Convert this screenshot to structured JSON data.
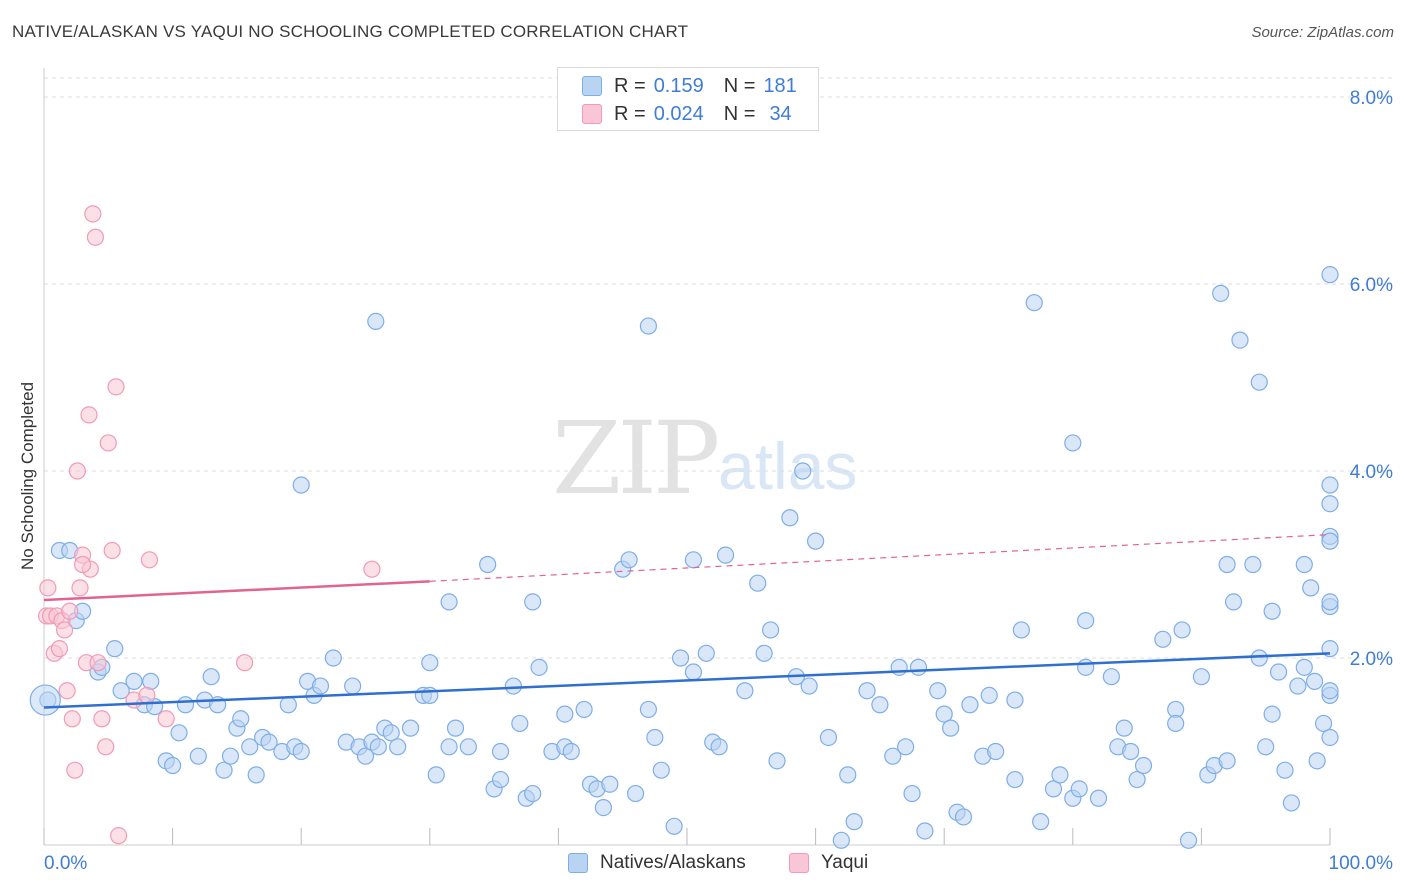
{
  "title": "NATIVE/ALASKAN VS YAQUI NO SCHOOLING COMPLETED CORRELATION CHART",
  "source": "Source: ZipAtlas.com",
  "watermark": {
    "part1": "ZIP",
    "part2": "atlas"
  },
  "legend": {
    "rows": [
      {
        "r_label": "R =",
        "r_value": "0.159",
        "n_label": "N =",
        "n_value": "181"
      },
      {
        "r_label": "R =",
        "r_value": "0.024",
        "n_label": "N =",
        "n_value": "34"
      }
    ]
  },
  "colors": {
    "blue": "#7eaee8",
    "blue_fill": "#b9d3f3",
    "blue_line": "#2f6fd0",
    "pink": "#f29ab6",
    "pink_fill": "#f8c6d6",
    "pink_line": "#e0648f",
    "grid": "#dddddd",
    "axis_label": "#3f7dd4"
  },
  "chart_data": {
    "type": "scatter",
    "title": "NATIVE/ALASKAN VS YAQUI NO SCHOOLING COMPLETED CORRELATION CHART",
    "xlabel": "",
    "ylabel": "No Schooling Completed",
    "xlim": [
      0,
      100
    ],
    "ylim": [
      0,
      8.2
    ],
    "x_tick_labels": [
      "0.0%",
      "100.0%"
    ],
    "y_ticks": [
      2,
      4,
      6,
      8
    ],
    "y_tick_labels": [
      "2.0%",
      "4.0%",
      "6.0%",
      "8.0%"
    ],
    "grid": true,
    "series": [
      {
        "name": "Natives/Alaskans",
        "r": 0.159,
        "n": 181,
        "trend": {
          "x": [
            0,
            100
          ],
          "y": [
            1.47,
            2.05
          ]
        },
        "points": [
          [
            0.3,
            1.55
          ],
          [
            1.2,
            3.15
          ],
          [
            2.0,
            3.15
          ],
          [
            2.5,
            2.4
          ],
          [
            3.0,
            2.5
          ],
          [
            4.2,
            1.85
          ],
          [
            4.5,
            1.9
          ],
          [
            5.5,
            2.1
          ],
          [
            6.0,
            1.65
          ],
          [
            7.0,
            1.75
          ],
          [
            7.8,
            1.5
          ],
          [
            8.3,
            1.75
          ],
          [
            8.6,
            1.48
          ],
          [
            9.5,
            0.9
          ],
          [
            10.0,
            0.85
          ],
          [
            10.5,
            1.2
          ],
          [
            11.0,
            1.5
          ],
          [
            12.0,
            0.95
          ],
          [
            12.5,
            1.55
          ],
          [
            13.0,
            1.8
          ],
          [
            13.5,
            1.5
          ],
          [
            14.0,
            0.8
          ],
          [
            14.5,
            0.95
          ],
          [
            15.0,
            1.25
          ],
          [
            15.3,
            1.35
          ],
          [
            16.0,
            1.05
          ],
          [
            16.5,
            0.75
          ],
          [
            17.0,
            1.15
          ],
          [
            17.5,
            1.1
          ],
          [
            18.5,
            1.0
          ],
          [
            19.0,
            1.5
          ],
          [
            19.5,
            1.05
          ],
          [
            20.0,
            1.0
          ],
          [
            20.5,
            1.75
          ],
          [
            21.0,
            1.6
          ],
          [
            20.0,
            3.85
          ],
          [
            21.5,
            1.7
          ],
          [
            22.5,
            2.0
          ],
          [
            23.5,
            1.1
          ],
          [
            24.0,
            1.7
          ],
          [
            24.5,
            1.05
          ],
          [
            25.0,
            0.95
          ],
          [
            25.5,
            1.1
          ],
          [
            26.0,
            1.05
          ],
          [
            25.8,
            5.6
          ],
          [
            26.5,
            1.25
          ],
          [
            27.0,
            1.2
          ],
          [
            27.5,
            1.05
          ],
          [
            28.5,
            1.25
          ],
          [
            29.5,
            1.6
          ],
          [
            30.0,
            1.95
          ],
          [
            30.5,
            0.75
          ],
          [
            30.0,
            1.6
          ],
          [
            31.5,
            1.05
          ],
          [
            32.0,
            1.25
          ],
          [
            31.5,
            2.6
          ],
          [
            33.0,
            1.05
          ],
          [
            34.5,
            3.0
          ],
          [
            35.0,
            0.6
          ],
          [
            35.5,
            0.7
          ],
          [
            35.5,
            1.0
          ],
          [
            36.5,
            1.7
          ],
          [
            37.0,
            1.3
          ],
          [
            37.5,
            0.5
          ],
          [
            38.0,
            0.55
          ],
          [
            38.0,
            2.6
          ],
          [
            38.5,
            1.9
          ],
          [
            39.5,
            1.0
          ],
          [
            40.5,
            1.05
          ],
          [
            40.5,
            1.4
          ],
          [
            41.0,
            1.0
          ],
          [
            42.0,
            1.45
          ],
          [
            42.5,
            0.65
          ],
          [
            43.0,
            0.6
          ],
          [
            43.5,
            0.4
          ],
          [
            44.0,
            0.65
          ],
          [
            45.0,
            2.95
          ],
          [
            45.5,
            3.05
          ],
          [
            46.0,
            0.55
          ],
          [
            47.0,
            1.45
          ],
          [
            47.0,
            5.55
          ],
          [
            47.5,
            1.15
          ],
          [
            48.0,
            0.8
          ],
          [
            49.0,
            0.2
          ],
          [
            49.5,
            2.0
          ],
          [
            50.5,
            3.05
          ],
          [
            50.5,
            1.85
          ],
          [
            51.5,
            2.05
          ],
          [
            52.0,
            1.1
          ],
          [
            52.5,
            1.05
          ],
          [
            53.0,
            3.1
          ],
          [
            54.5,
            1.65
          ],
          [
            55.5,
            2.8
          ],
          [
            56.0,
            2.05
          ],
          [
            56.5,
            2.3
          ],
          [
            57.0,
            0.9
          ],
          [
            58.0,
            3.5
          ],
          [
            58.5,
            1.8
          ],
          [
            59.0,
            4.0
          ],
          [
            59.5,
            1.7
          ],
          [
            60.0,
            3.25
          ],
          [
            61.0,
            1.15
          ],
          [
            62.0,
            0.05
          ],
          [
            62.5,
            0.75
          ],
          [
            63.0,
            0.25
          ],
          [
            64.0,
            1.65
          ],
          [
            65.0,
            1.5
          ],
          [
            66.0,
            0.95
          ],
          [
            66.5,
            1.9
          ],
          [
            67.0,
            1.05
          ],
          [
            67.5,
            0.55
          ],
          [
            68.0,
            1.9
          ],
          [
            68.5,
            0.15
          ],
          [
            69.5,
            1.65
          ],
          [
            70.0,
            1.4
          ],
          [
            70.5,
            1.25
          ],
          [
            71.0,
            0.35
          ],
          [
            71.5,
            0.3
          ],
          [
            72.0,
            1.5
          ],
          [
            73.0,
            0.95
          ],
          [
            73.5,
            1.6
          ],
          [
            74.0,
            1.0
          ],
          [
            75.5,
            0.7
          ],
          [
            76.0,
            2.3
          ],
          [
            75.5,
            1.55
          ],
          [
            77.0,
            5.8
          ],
          [
            77.5,
            0.25
          ],
          [
            78.5,
            0.6
          ],
          [
            79.0,
            0.75
          ],
          [
            80.0,
            0.5
          ],
          [
            80.5,
            0.6
          ],
          [
            81.0,
            2.4
          ],
          [
            81.0,
            1.9
          ],
          [
            80.0,
            4.3
          ],
          [
            82.0,
            0.5
          ],
          [
            83.0,
            1.8
          ],
          [
            83.5,
            1.05
          ],
          [
            84.0,
            1.25
          ],
          [
            84.5,
            1.0
          ],
          [
            85.0,
            0.7
          ],
          [
            85.5,
            0.85
          ],
          [
            87.0,
            2.2
          ],
          [
            88.0,
            1.45
          ],
          [
            88.5,
            2.3
          ],
          [
            89.0,
            0.05
          ],
          [
            90.0,
            1.8
          ],
          [
            90.5,
            0.75
          ],
          [
            91.0,
            0.85
          ],
          [
            91.5,
            5.9
          ],
          [
            92.0,
            3.0
          ],
          [
            92.5,
            2.6
          ],
          [
            93.0,
            5.4
          ],
          [
            94.0,
            3.0
          ],
          [
            94.5,
            2.0
          ],
          [
            94.5,
            4.95
          ],
          [
            95.0,
            1.05
          ],
          [
            95.5,
            2.5
          ],
          [
            95.5,
            1.4
          ],
          [
            96.0,
            1.85
          ],
          [
            96.5,
            0.8
          ],
          [
            97.0,
            0.45
          ],
          [
            97.5,
            1.7
          ],
          [
            98.0,
            1.9
          ],
          [
            98.5,
            2.75
          ],
          [
            98.8,
            1.75
          ],
          [
            99.0,
            0.9
          ],
          [
            99.5,
            1.3
          ],
          [
            100.5,
            1.6
          ],
          [
            101.0,
            3.3
          ],
          [
            102.0,
            2.55
          ],
          [
            102.5,
            3.25
          ],
          [
            103.0,
            2.6
          ],
          [
            103.5,
            2.1
          ],
          [
            104.0,
            3.85
          ],
          [
            104.5,
            3.65
          ],
          [
            105.0,
            6.1
          ],
          [
            102.0,
            1.15
          ],
          [
            100.0,
            1.65
          ],
          [
            98.0,
            3.0
          ],
          [
            92.0,
            0.9
          ],
          [
            88.0,
            1.3
          ]
        ]
      },
      {
        "name": "Yaqui",
        "r": 0.024,
        "n": 34,
        "trend": {
          "x": [
            0,
            30
          ],
          "y": [
            2.62,
            2.82
          ]
        },
        "trend_ext": {
          "x": [
            30,
            100
          ],
          "y": [
            2.82,
            3.32
          ]
        },
        "points": [
          [
            0.2,
            2.45
          ],
          [
            0.3,
            2.75
          ],
          [
            0.5,
            2.45
          ],
          [
            0.8,
            2.05
          ],
          [
            1.0,
            2.45
          ],
          [
            1.2,
            2.1
          ],
          [
            1.4,
            2.4
          ],
          [
            1.6,
            2.3
          ],
          [
            1.8,
            1.65
          ],
          [
            2.0,
            2.5
          ],
          [
            2.2,
            1.35
          ],
          [
            2.4,
            0.8
          ],
          [
            2.6,
            4.0
          ],
          [
            2.8,
            2.75
          ],
          [
            3.0,
            3.1
          ],
          [
            3.3,
            1.95
          ],
          [
            3.6,
            2.95
          ],
          [
            3.8,
            6.75
          ],
          [
            4.0,
            6.5
          ],
          [
            4.2,
            1.95
          ],
          [
            4.5,
            1.35
          ],
          [
            4.8,
            1.05
          ],
          [
            5.0,
            4.3
          ],
          [
            5.3,
            3.15
          ],
          [
            5.6,
            4.9
          ],
          [
            5.8,
            0.1
          ],
          [
            3.0,
            3.0
          ],
          [
            3.5,
            4.6
          ],
          [
            7.0,
            1.55
          ],
          [
            8.0,
            1.6
          ],
          [
            8.2,
            3.05
          ],
          [
            9.5,
            1.35
          ],
          [
            15.6,
            1.95
          ],
          [
            25.5,
            2.95
          ]
        ]
      }
    ]
  },
  "bottom_legend": [
    {
      "label": "Natives/Alaskans"
    },
    {
      "label": "Yaqui"
    }
  ]
}
